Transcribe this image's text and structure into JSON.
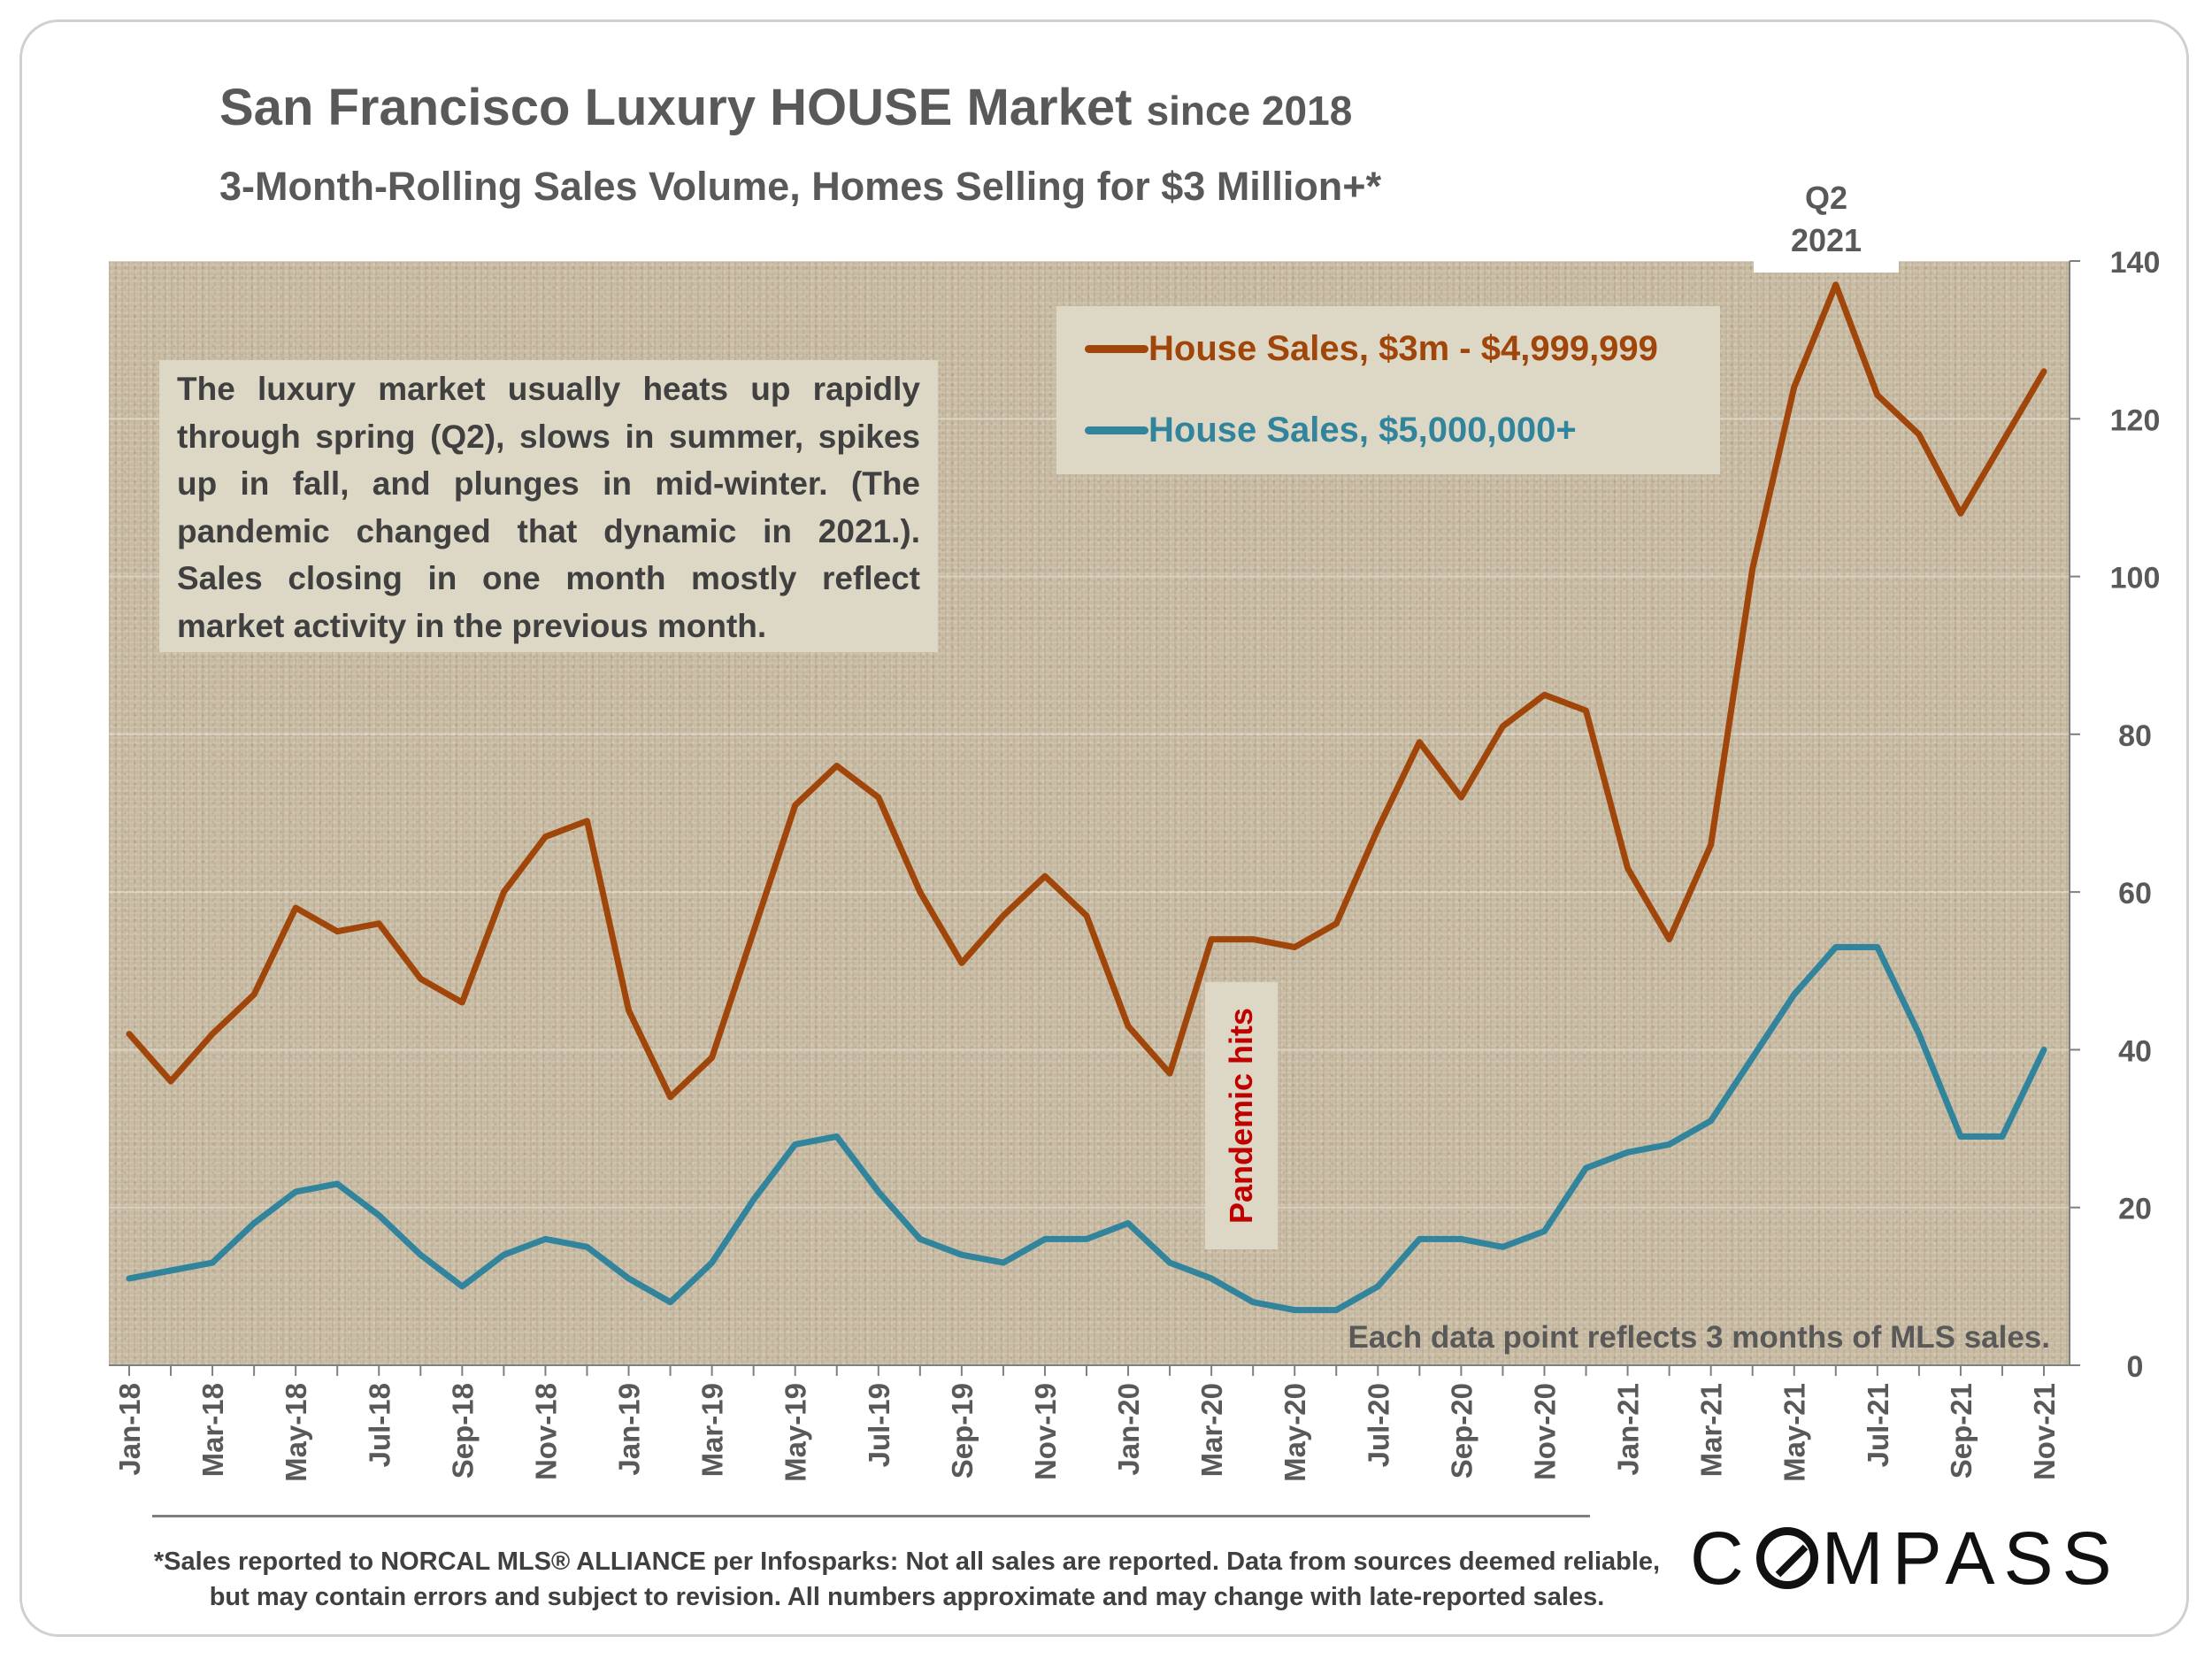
{
  "header": {
    "title_main": "San Francisco Luxury HOUSE Market",
    "title_suffix": "since 2018",
    "subtitle": "3-Month-Rolling Sales Volume, Homes Selling for $3 Million+*"
  },
  "annotations": {
    "q2_line1": "Q2",
    "q2_line2": "2021",
    "note": "The luxury market usually heats up rapidly through spring (Q2), slows in summer, spikes up in fall, and plunges in mid-winter.  (The pandemic changed that dynamic in 2021.). Sales closing in one month mostly reflect market activity in the previous month.",
    "pandemic": "Pandemic hits",
    "mls_note": "Each data point reflects 3 months of MLS sales."
  },
  "footer": {
    "footnote_line1": "*Sales reported to NORCAL MLS® ALLIANCE per Infosparks: Not all sales are reported. Data from sources deemed reliable,",
    "footnote_line2": "but may contain errors and subject to revision. All numbers approximate and may change with late-reported sales.",
    "logo_pre": "C",
    "logo_post": "MPASS"
  },
  "chart_data": {
    "type": "line",
    "x": [
      "Jan-18",
      "Feb-18",
      "Mar-18",
      "Apr-18",
      "May-18",
      "Jun-18",
      "Jul-18",
      "Aug-18",
      "Sep-18",
      "Oct-18",
      "Nov-18",
      "Dec-18",
      "Jan-19",
      "Feb-19",
      "Mar-19",
      "Apr-19",
      "May-19",
      "Jun-19",
      "Jul-19",
      "Aug-19",
      "Sep-19",
      "Oct-19",
      "Nov-19",
      "Dec-19",
      "Jan-20",
      "Feb-20",
      "Mar-20",
      "Apr-20",
      "May-20",
      "Jun-20",
      "Jul-20",
      "Aug-20",
      "Sep-20",
      "Oct-20",
      "Nov-20",
      "Dec-20",
      "Jan-21",
      "Feb-21",
      "Mar-21",
      "Apr-21",
      "May-21",
      "Jun-21",
      "Jul-21",
      "Aug-21",
      "Sep-21",
      "Oct-21",
      "Nov-21"
    ],
    "tick_labels": [
      "Jan-18",
      "Mar-18",
      "May-18",
      "Jul-18",
      "Sep-18",
      "Nov-18",
      "Jan-19",
      "Mar-19",
      "May-19",
      "Jul-19",
      "Sep-19",
      "Nov-19",
      "Jan-20",
      "Mar-20",
      "May-20",
      "Jul-20",
      "Sep-20",
      "Nov-20",
      "Jan-21",
      "Mar-21",
      "May-21",
      "Jul-21",
      "Sep-21",
      "Nov-21"
    ],
    "series": [
      {
        "name": "House Sales, $3m - $4,999,999",
        "color": "#a0460a",
        "values": [
          42,
          36,
          42,
          47,
          58,
          55,
          56,
          49,
          46,
          60,
          67,
          69,
          45,
          34,
          39,
          55,
          71,
          76,
          72,
          60,
          51,
          57,
          62,
          57,
          43,
          37,
          54,
          54,
          53,
          56,
          68,
          79,
          72,
          81,
          85,
          83,
          63,
          54,
          66,
          101,
          124,
          137,
          123,
          118,
          108,
          117,
          126
        ]
      },
      {
        "name": "House Sales, $5,000,000+",
        "color": "#31849b",
        "values": [
          11,
          12,
          13,
          18,
          22,
          23,
          19,
          14,
          10,
          14,
          16,
          15,
          11,
          8,
          13,
          21,
          28,
          29,
          22,
          16,
          14,
          13,
          16,
          16,
          18,
          13,
          11,
          8,
          7,
          7,
          10,
          16,
          16,
          15,
          17,
          25,
          27,
          28,
          31,
          39,
          47,
          53,
          53,
          42,
          29,
          29,
          40
        ]
      }
    ],
    "y_ticks": [
      0,
      20,
      40,
      60,
      80,
      100,
      120,
      140
    ],
    "ylim": [
      0,
      140
    ],
    "y_axis_side": "right",
    "grid": true,
    "legend_position": "top-right"
  }
}
